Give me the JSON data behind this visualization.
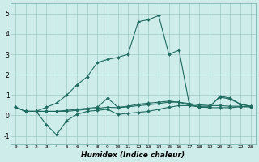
{
  "xlabel": "Humidex (Indice chaleur)",
  "bg_color": "#ceecea",
  "grid_color": "#9dc9c6",
  "line_color": "#1e6b60",
  "xlim": [
    -0.5,
    23.5
  ],
  "ylim": [
    -1.4,
    5.5
  ],
  "xticks": [
    0,
    1,
    2,
    3,
    4,
    5,
    6,
    7,
    8,
    9,
    10,
    11,
    12,
    13,
    14,
    15,
    16,
    17,
    18,
    19,
    20,
    21,
    22,
    23
  ],
  "yticks": [
    -1,
    0,
    1,
    2,
    3,
    4,
    5
  ],
  "line_main_x": [
    0,
    1,
    2,
    3,
    4,
    5,
    6,
    7,
    8,
    9,
    10,
    11,
    12,
    13,
    14,
    15,
    16,
    17,
    18,
    19,
    20,
    21,
    22,
    23
  ],
  "line_main_y": [
    0.4,
    0.2,
    0.2,
    0.4,
    0.6,
    1.0,
    1.5,
    1.9,
    2.6,
    2.75,
    2.85,
    3.0,
    4.6,
    4.7,
    4.9,
    3.0,
    3.2,
    0.55,
    0.4,
    0.4,
    0.95,
    0.85,
    0.55,
    0.45
  ],
  "line_a_x": [
    0,
    1,
    2,
    3,
    4,
    5,
    6,
    7,
    8,
    9,
    10,
    11,
    12,
    13,
    14,
    15,
    16,
    17,
    18,
    19,
    20,
    21,
    22,
    23
  ],
  "line_a_y": [
    0.4,
    0.2,
    0.2,
    0.2,
    0.2,
    0.25,
    0.3,
    0.35,
    0.4,
    0.85,
    0.4,
    0.45,
    0.55,
    0.6,
    0.65,
    0.7,
    0.65,
    0.5,
    0.45,
    0.45,
    0.9,
    0.8,
    0.55,
    0.45
  ],
  "line_b_x": [
    0,
    1,
    2,
    3,
    4,
    5,
    6,
    7,
    8,
    9,
    10,
    11,
    12,
    13,
    14,
    15,
    16,
    17,
    18,
    19,
    20,
    21,
    22,
    23
  ],
  "line_b_y": [
    0.4,
    0.2,
    0.2,
    0.2,
    0.2,
    0.2,
    0.25,
    0.3,
    0.35,
    0.4,
    0.38,
    0.42,
    0.48,
    0.52,
    0.58,
    0.65,
    0.65,
    0.58,
    0.52,
    0.48,
    0.48,
    0.45,
    0.45,
    0.42
  ],
  "line_lower_x": [
    0,
    1,
    2,
    3,
    4,
    5,
    6,
    7,
    8,
    9,
    10,
    11,
    12,
    13,
    14,
    15,
    16,
    17,
    18,
    19,
    20,
    21,
    22,
    23
  ],
  "line_lower_y": [
    0.4,
    0.2,
    0.2,
    -0.45,
    -0.95,
    -0.25,
    0.05,
    0.2,
    0.25,
    0.3,
    0.05,
    0.1,
    0.15,
    0.2,
    0.3,
    0.4,
    0.48,
    0.48,
    0.42,
    0.38,
    0.38,
    0.38,
    0.42,
    0.42
  ]
}
